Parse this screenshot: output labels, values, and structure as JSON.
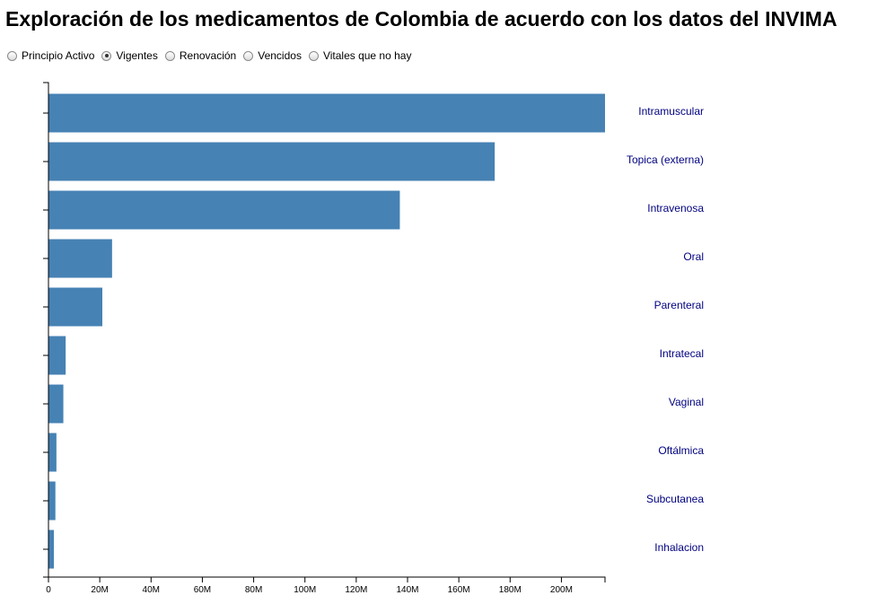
{
  "title": "Exploración de los medicamentos de Colombia de acuerdo con los datos del INVIMA",
  "filters": [
    {
      "label": "Principio Activo",
      "checked": false
    },
    {
      "label": "Vigentes",
      "checked": true
    },
    {
      "label": "Renovación",
      "checked": false
    },
    {
      "label": "Vencidos",
      "checked": false
    },
    {
      "label": "Vitales que no hay",
      "checked": false
    }
  ],
  "colors": {
    "bar": "#4682b4",
    "label": "#000080",
    "axis": "#000000"
  },
  "chart_data": {
    "type": "bar",
    "orientation": "horizontal",
    "title": "",
    "xlabel": "",
    "ylabel": "",
    "categories": [
      "Intramuscular",
      "Topica (externa)",
      "Intravenosa",
      "Oral",
      "Parenteral",
      "Intratecal",
      "Vaginal",
      "Oftálmica",
      "Subcutanea",
      "Inhalacion"
    ],
    "values": [
      217000000,
      174000000,
      137000000,
      24800000,
      21000000,
      6700000,
      5800000,
      3100000,
      2700000,
      2100000
    ],
    "xlim": [
      0,
      217000000
    ],
    "xticks": [
      0,
      20000000,
      40000000,
      60000000,
      80000000,
      100000000,
      120000000,
      140000000,
      160000000,
      180000000,
      200000000
    ],
    "xtick_labels": [
      "0",
      "20M",
      "40M",
      "60M",
      "80M",
      "100M",
      "120M",
      "140M",
      "160M",
      "180M",
      "200M"
    ]
  }
}
